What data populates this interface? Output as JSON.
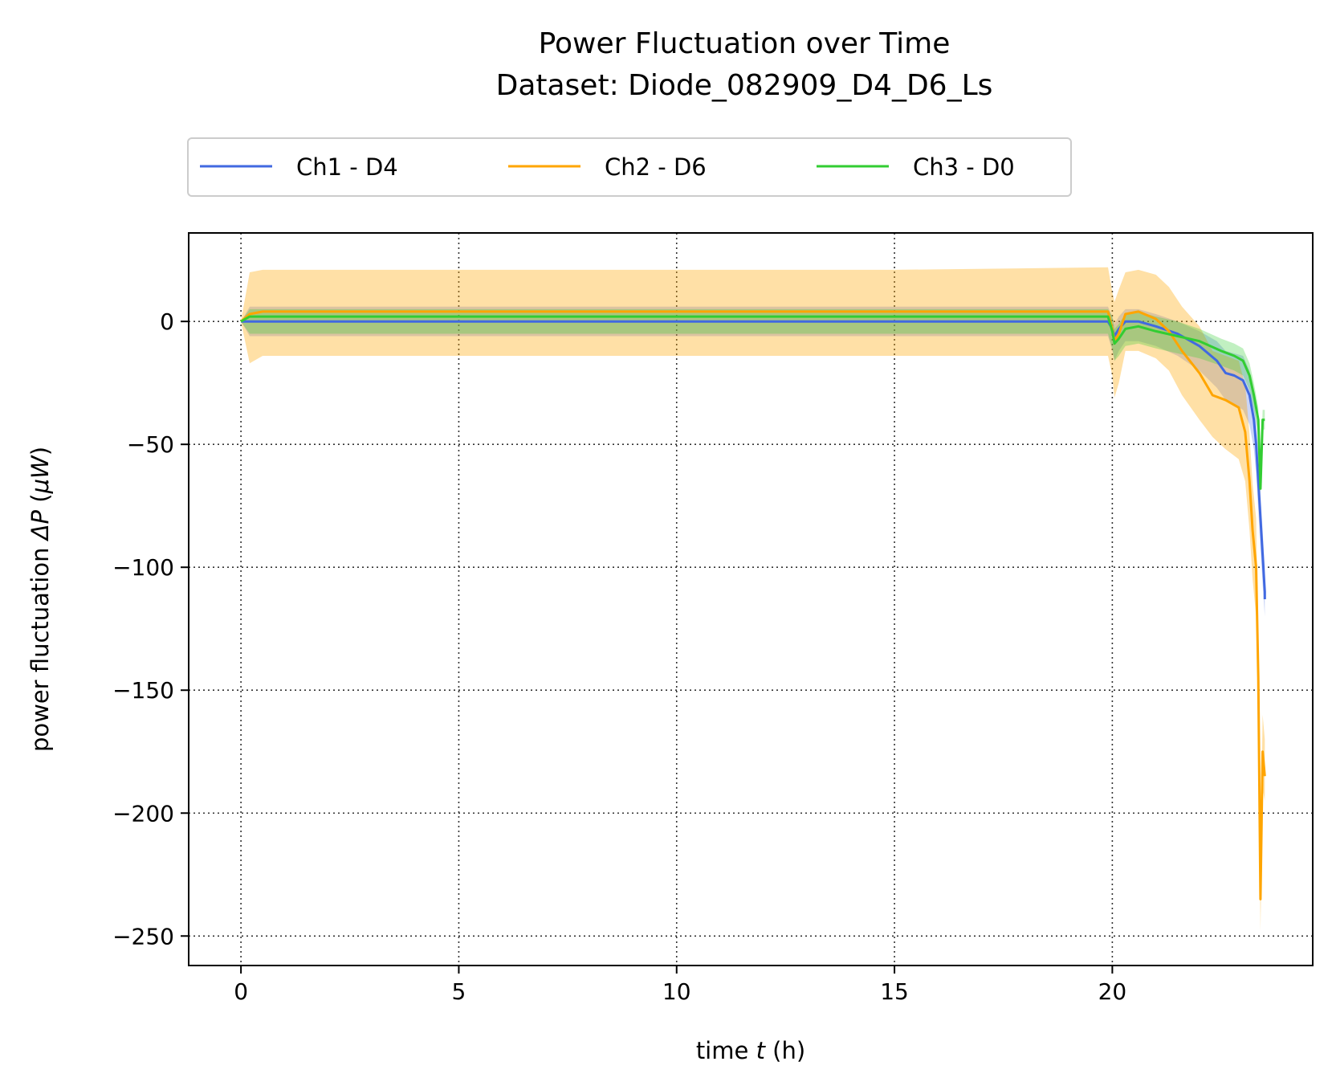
{
  "chart_data": {
    "type": "line",
    "title": "Power Fluctuation over Time",
    "subtitle": "Dataset: Diode_082909_D4_D6_Ls",
    "xlabel": {
      "prefix": "time ",
      "var": "t",
      "suffix": " (h)"
    },
    "ylabel": {
      "prefix": "power fluctuation ",
      "var": "ΔP",
      "open": " (",
      "unit": "μW",
      "close": ")"
    },
    "xlim": [
      -1.2,
      24.6
    ],
    "ylim": [
      -262,
      36
    ],
    "xticks": [
      0,
      5,
      10,
      15,
      20
    ],
    "yticks": [
      0,
      -50,
      -100,
      -150,
      -200,
      -250
    ],
    "grid": true,
    "legend_position": "top-center",
    "series": [
      {
        "name": "Ch1 - D4",
        "color": "#4169e1",
        "x": [
          0,
          0.2,
          0.5,
          2,
          5,
          10,
          15,
          19.9,
          20.0,
          20.05,
          20.15,
          20.3,
          20.6,
          21,
          21.5,
          22,
          22.4,
          22.6,
          22.8,
          23.0,
          23.15,
          23.25,
          23.3,
          23.35,
          23.4,
          23.45,
          23.5,
          23.5
        ],
        "y": [
          0,
          0,
          0,
          0,
          0,
          0,
          0,
          0,
          -3,
          -6,
          -3,
          0,
          0,
          -2,
          -5,
          -10,
          -16,
          -21,
          -22,
          -24,
          -30,
          -40,
          -50,
          -65,
          -80,
          -95,
          -110,
          -113
        ],
        "lower": [
          0,
          -6,
          -6,
          -6,
          -6,
          -6,
          -6,
          -6,
          -12,
          -16,
          -12,
          -8,
          -8,
          -10,
          -14,
          -20,
          -27,
          -32,
          -34,
          -36,
          -42,
          -52,
          -62,
          -77,
          -92,
          -107,
          -120,
          -120
        ],
        "upper": [
          0,
          6,
          6,
          6,
          6,
          6,
          6,
          6,
          2,
          -1,
          2,
          5,
          5,
          3,
          0,
          -4,
          -8,
          -12,
          -13,
          -14,
          -20,
          -30,
          -40,
          -55,
          -70,
          -85,
          -100,
          -100
        ]
      },
      {
        "name": "Ch2 - D6",
        "color": "#ffa500",
        "x": [
          0,
          0.2,
          0.5,
          2,
          5,
          10,
          15,
          19.9,
          20.0,
          20.05,
          20.15,
          20.3,
          20.6,
          21,
          21.3,
          21.6,
          22,
          22.3,
          22.6,
          22.9,
          23.05,
          23.15,
          23.22,
          23.3,
          23.35,
          23.4,
          23.45,
          23.5
        ],
        "y": [
          0,
          3,
          4,
          4,
          4,
          4,
          4,
          4,
          -3,
          -8,
          -5,
          3,
          4,
          1,
          -4,
          -12,
          -21,
          -30,
          -32,
          -35,
          -45,
          -65,
          -85,
          -100,
          -145,
          -235,
          -175,
          -185
        ],
        "lower": [
          0,
          -17,
          -14,
          -14,
          -14,
          -14,
          -14,
          -14,
          -22,
          -31,
          -25,
          -12,
          -12,
          -15,
          -20,
          -30,
          -40,
          -47,
          -52,
          -56,
          -65,
          -85,
          -105,
          -120,
          -160,
          -248,
          -190,
          -195
        ],
        "upper": [
          0,
          20,
          21,
          21,
          21,
          21,
          21,
          22,
          12,
          8,
          13,
          20,
          21,
          19,
          14,
          6,
          -2,
          -12,
          -14,
          -16,
          -26,
          -46,
          -66,
          -80,
          -130,
          -220,
          -160,
          -170
        ]
      },
      {
        "name": "Ch3 - D0",
        "color": "#32cd32",
        "x": [
          0,
          0.2,
          0.5,
          2,
          5,
          10,
          15,
          19.9,
          20.0,
          20.05,
          20.15,
          20.3,
          20.6,
          21,
          21.5,
          22,
          22.5,
          22.8,
          23.0,
          23.15,
          23.25,
          23.35,
          23.4,
          23.45,
          23.5
        ],
        "y": [
          0,
          2,
          2,
          2,
          2,
          2,
          2,
          2,
          -4,
          -9,
          -7,
          -3,
          -2,
          -4,
          -6,
          -8,
          -12,
          -14,
          -16,
          -22,
          -30,
          -40,
          -68,
          -40,
          -40
        ],
        "lower": [
          0,
          -5,
          -5,
          -5,
          -5,
          -5,
          -5,
          -5,
          -11,
          -16,
          -14,
          -10,
          -9,
          -11,
          -13,
          -15,
          -18,
          -20,
          -22,
          -28,
          -36,
          -46,
          -70,
          -44,
          -44
        ],
        "upper": [
          0,
          5,
          5,
          5,
          5,
          5,
          5,
          5,
          2,
          -3,
          -1,
          3,
          4,
          2,
          0,
          -3,
          -7,
          -9,
          -11,
          -17,
          -25,
          -35,
          -64,
          -36,
          -36
        ]
      }
    ]
  }
}
